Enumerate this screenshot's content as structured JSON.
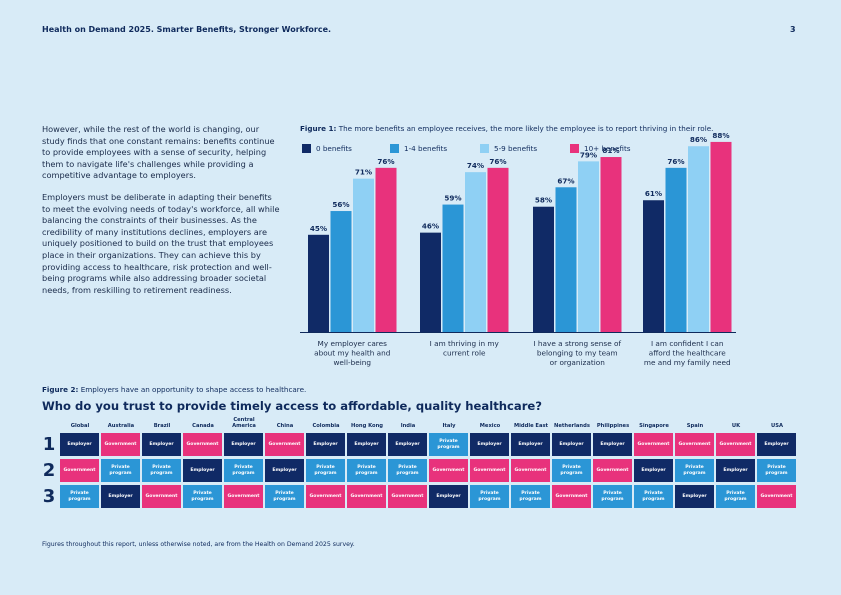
{
  "header": {
    "title": "Health on Demand 2025. Smarter Benefits, Stronger Workforce.",
    "page_number": "3"
  },
  "intro": {
    "paragraph_1": "However, while the rest of the world is changing, our study finds that one constant remains: benefits continue to provide employees with a sense of security, helping them to navigate life's challenges while providing a competitive advantage to employers.",
    "paragraph_2": "Employers must be deliberate in adapting their benefits to meet the evolving needs of today's workforce, all while balancing the constraints of their businesses. As the credibility of many institutions declines, employers are uniquely positioned to build on the trust that employees place in their organizations. They can achieve this by providing access to healthcare, risk protection and well-being programs while also addressing broader societal needs, from reskilling to retirement readiness."
  },
  "figure1": {
    "label": "Figure 1:",
    "caption": "The more benefits an employee receives, the more likely the employee is to report thriving in their role."
  },
  "chart_data": {
    "type": "bar",
    "title": "",
    "xlabel": "",
    "ylabel": "",
    "ylim": [
      0,
      100
    ],
    "grid": false,
    "legend_position": "top",
    "categories": [
      "My employer cares about my health and well-being",
      "I am thriving in my current role",
      "I have a strong sense of belonging to my team or organization",
      "I am confident I can afford the healthcare me and my family need"
    ],
    "category_lines": [
      [
        "My employer cares",
        "about my health and",
        "well-being"
      ],
      [
        "I am thriving in my",
        "current role"
      ],
      [
        "I have a strong sense of",
        "belonging to my team",
        "or organization"
      ],
      [
        "I am confident I can",
        "afford the healthcare",
        "me and my family need"
      ]
    ],
    "series": [
      {
        "name": "0 benefits",
        "color": "#102a66",
        "values": [
          45,
          46,
          58,
          61
        ]
      },
      {
        "name": "1-4 benefits",
        "color": "#2b96d6",
        "values": [
          56,
          59,
          67,
          76
        ]
      },
      {
        "name": "5-9 benefits",
        "color": "#8fd0f4",
        "values": [
          71,
          74,
          79,
          86
        ]
      },
      {
        "name": "10+ benefits",
        "color": "#e8327c",
        "values": [
          76,
          76,
          81,
          88
        ]
      }
    ],
    "value_suffix": "%"
  },
  "figure2": {
    "label": "Figure 2:",
    "caption": "Employers have an opportunity to shape access to healthcare.",
    "question": "Who do you trust to provide timely access to affordable, quality healthcare?",
    "ranks": [
      "1",
      "2",
      "3"
    ],
    "countries": [
      {
        "name": "Global",
        "ranks": [
          "Employer",
          "Government",
          "Private program"
        ]
      },
      {
        "name": "Australia",
        "ranks": [
          "Government",
          "Private program",
          "Employer"
        ]
      },
      {
        "name": "Brazil",
        "ranks": [
          "Employer",
          "Private program",
          "Government"
        ]
      },
      {
        "name": "Canada",
        "ranks": [
          "Government",
          "Employer",
          "Private program"
        ]
      },
      {
        "name": "Central America",
        "ranks": [
          "Employer",
          "Private program",
          "Government"
        ]
      },
      {
        "name": "China",
        "ranks": [
          "Government",
          "Employer",
          "Private program"
        ]
      },
      {
        "name": "Colombia",
        "ranks": [
          "Employer",
          "Private program",
          "Government"
        ]
      },
      {
        "name": "Hong Kong",
        "ranks": [
          "Employer",
          "Private program",
          "Government"
        ]
      },
      {
        "name": "India",
        "ranks": [
          "Employer",
          "Private program",
          "Government"
        ]
      },
      {
        "name": "Italy",
        "ranks": [
          "Private program",
          "Government",
          "Employer"
        ]
      },
      {
        "name": "Mexico",
        "ranks": [
          "Employer",
          "Government",
          "Private program"
        ]
      },
      {
        "name": "Middle East",
        "ranks": [
          "Employer",
          "Government",
          "Private program"
        ]
      },
      {
        "name": "Netherlands",
        "ranks": [
          "Employer",
          "Private program",
          "Government"
        ]
      },
      {
        "name": "Philippines",
        "ranks": [
          "Employer",
          "Government",
          "Private program"
        ]
      },
      {
        "name": "Singapore",
        "ranks": [
          "Government",
          "Employer",
          "Private program"
        ]
      },
      {
        "name": "Spain",
        "ranks": [
          "Government",
          "Private program",
          "Employer"
        ]
      },
      {
        "name": "UK",
        "ranks": [
          "Government",
          "Employer",
          "Private program"
        ]
      },
      {
        "name": "USA",
        "ranks": [
          "Employer",
          "Private program",
          "Government"
        ]
      }
    ],
    "category_colors": {
      "Employer": "#102a66",
      "Government": "#e8327c",
      "Private program": "#2b96d6"
    }
  },
  "footnote": "Figures throughout this report, unless otherwise noted, are from the Health on Demand 2025 survey."
}
